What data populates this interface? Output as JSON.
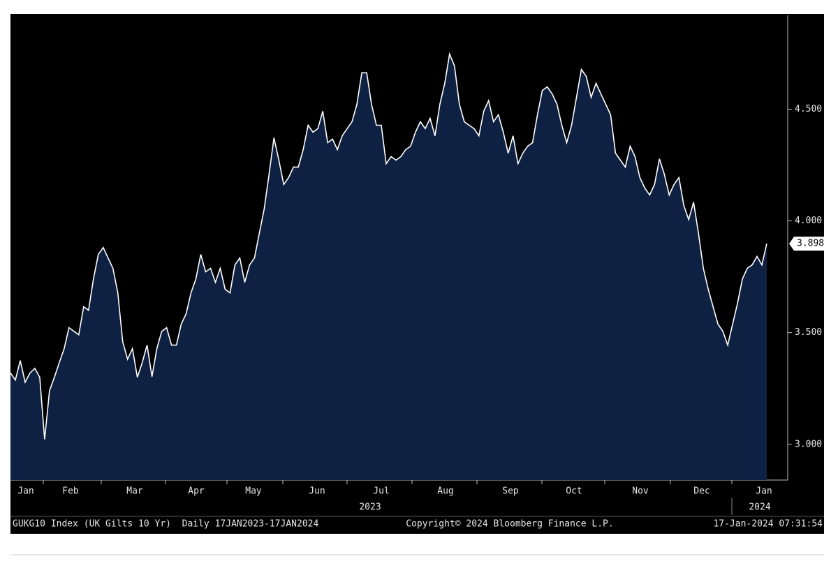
{
  "chart_data": {
    "type": "area",
    "values": [
      3.319,
      3.288,
      3.375,
      3.278,
      3.319,
      3.34,
      3.3,
      3.022,
      3.24,
      3.3,
      3.366,
      3.428,
      3.522,
      3.506,
      3.49,
      3.616,
      3.6,
      3.74,
      3.85,
      3.881,
      3.834,
      3.788,
      3.678,
      3.459,
      3.381,
      3.428,
      3.3,
      3.366,
      3.444,
      3.303,
      3.428,
      3.506,
      3.522,
      3.444,
      3.444,
      3.538,
      3.584,
      3.678,
      3.74,
      3.85,
      3.772,
      3.788,
      3.725,
      3.788,
      3.694,
      3.678,
      3.803,
      3.834,
      3.725,
      3.803,
      3.834,
      3.944,
      4.053,
      4.209,
      4.372,
      4.272,
      4.163,
      4.194,
      4.241,
      4.241,
      4.319,
      4.428,
      4.397,
      4.413,
      4.491,
      4.35,
      4.366,
      4.319,
      4.381,
      4.413,
      4.444,
      4.522,
      4.663,
      4.663,
      4.522,
      4.428,
      4.428,
      4.256,
      4.288,
      4.272,
      4.288,
      4.319,
      4.334,
      4.397,
      4.444,
      4.413,
      4.459,
      4.381,
      4.522,
      4.616,
      4.747,
      4.694,
      4.522,
      4.444,
      4.428,
      4.413,
      4.381,
      4.491,
      4.538,
      4.444,
      4.475,
      4.397,
      4.303,
      4.381,
      4.256,
      4.303,
      4.334,
      4.35,
      4.475,
      4.584,
      4.6,
      4.569,
      4.522,
      4.428,
      4.35,
      4.428,
      4.553,
      4.678,
      4.647,
      4.553,
      4.616,
      4.569,
      4.522,
      4.475,
      4.303,
      4.272,
      4.241,
      4.334,
      4.288,
      4.194,
      4.147,
      4.116,
      4.163,
      4.278,
      4.209,
      4.116,
      4.163,
      4.194,
      4.069,
      4.006,
      4.084,
      3.944,
      3.788,
      3.694,
      3.616,
      3.538,
      3.506,
      3.444,
      3.538,
      3.631,
      3.74,
      3.788,
      3.803,
      3.841,
      3.803,
      3.898
    ],
    "months": [
      "Jan",
      "Feb",
      "Mar",
      "Apr",
      "May",
      "Jun",
      "Jul",
      "Aug",
      "Sep",
      "Oct",
      "Nov",
      "Dec",
      "Jan"
    ],
    "years": [
      "2023",
      "2024"
    ],
    "ylim": [
      2.84,
      4.92
    ],
    "yticks": [
      {
        "value": 3.0,
        "label": "3.000"
      },
      {
        "value": 3.5,
        "label": "3.500"
      },
      {
        "value": 4.0,
        "label": "4.000"
      },
      {
        "value": 4.5,
        "label": "4.500"
      }
    ],
    "line_color": "#ffffff",
    "fill_color": "#0f2142",
    "footer_left": "GUKG10 Index (UK Gilts 10 Yr)  Daily 17JAN2023-17JAN2024",
    "copyright": "Copyright© 2024 Bloomberg Finance L.P.",
    "timestamp": "17-Jan-2024 07:31:54"
  }
}
